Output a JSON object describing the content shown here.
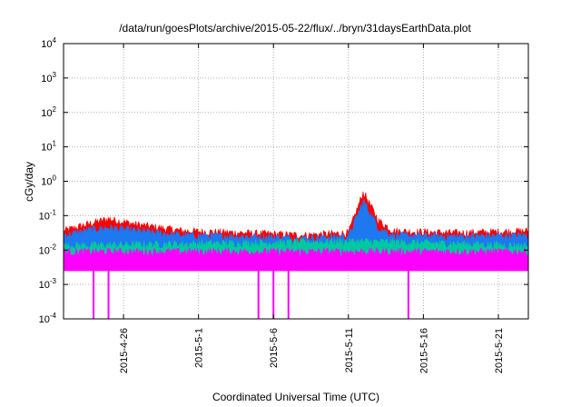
{
  "chart_data": {
    "type": "area",
    "title": "/data/run/goesPlots/archive/2015-05-22/flux/../bryn/31daysEarthData.plot",
    "xlabel": "Coordinated Universal Time (UTC)",
    "ylabel": "cGy/day",
    "yscale": "log",
    "ylim": [
      0.0001,
      10000
    ],
    "xlim": [
      "2015-04-22",
      "2015-05-23"
    ],
    "grid": true,
    "y_ticks": [
      {
        "base": "10",
        "exp": "-4"
      },
      {
        "base": "10",
        "exp": "-3"
      },
      {
        "base": "10",
        "exp": "-2"
      },
      {
        "base": "10",
        "exp": "-1"
      },
      {
        "base": "10",
        "exp": "0"
      },
      {
        "base": "10",
        "exp": "1"
      },
      {
        "base": "10",
        "exp": "2"
      },
      {
        "base": "10",
        "exp": "3"
      },
      {
        "base": "10",
        "exp": "4"
      }
    ],
    "x_ticks": [
      {
        "label": "2015-4-26",
        "date": "2015-04-26"
      },
      {
        "label": "2015-5-1",
        "date": "2015-05-01"
      },
      {
        "label": "2015-5-6",
        "date": "2015-05-06"
      },
      {
        "label": "2015-5-11",
        "date": "2015-05-11"
      },
      {
        "label": "2015-5-16",
        "date": "2015-05-16"
      },
      {
        "label": "2015-5-21",
        "date": "2015-05-21"
      }
    ],
    "series": [
      {
        "color": "#ff0000",
        "x": [
          "2015-04-22",
          "2015-04-24",
          "2015-04-25",
          "2015-04-27",
          "2015-04-30",
          "2015-05-04",
          "2015-05-08",
          "2015-05-11",
          "2015-05-12",
          "2015-05-13",
          "2015-05-14",
          "2015-05-18",
          "2015-05-23"
        ],
        "values": [
          0.04,
          0.07,
          0.09,
          0.06,
          0.04,
          0.035,
          0.03,
          0.035,
          0.55,
          0.08,
          0.04,
          0.035,
          0.04
        ]
      },
      {
        "color": "#1e78f0",
        "x": [
          "2015-04-22",
          "2015-04-24",
          "2015-04-25",
          "2015-04-27",
          "2015-04-30",
          "2015-05-04",
          "2015-05-08",
          "2015-05-11",
          "2015-05-12",
          "2015-05-13",
          "2015-05-14",
          "2015-05-18",
          "2015-05-23"
        ],
        "values": [
          0.03,
          0.045,
          0.05,
          0.04,
          0.03,
          0.028,
          0.025,
          0.028,
          0.3,
          0.05,
          0.03,
          0.028,
          0.03
        ]
      },
      {
        "color": "#00c8a0",
        "x": [
          "2015-04-22",
          "2015-05-12",
          "2015-05-23"
        ],
        "values": [
          0.015,
          0.02,
          0.015
        ]
      },
      {
        "color": "#ff00ff",
        "x": [
          "2015-04-22",
          "2015-04-24",
          "2015-04-25",
          "2015-05-05",
          "2015-05-06",
          "2015-05-07",
          "2015-05-15",
          "2015-05-23"
        ],
        "values": [
          0.01,
          0.01,
          0.01,
          0.01,
          0.01,
          0.01,
          0.01,
          0.01
        ],
        "baseline": 0.0025,
        "dropouts": [
          "2015-04-24",
          "2015-04-25",
          "2015-05-05",
          "2015-05-06",
          "2015-05-07",
          "2015-05-15"
        ]
      }
    ]
  }
}
